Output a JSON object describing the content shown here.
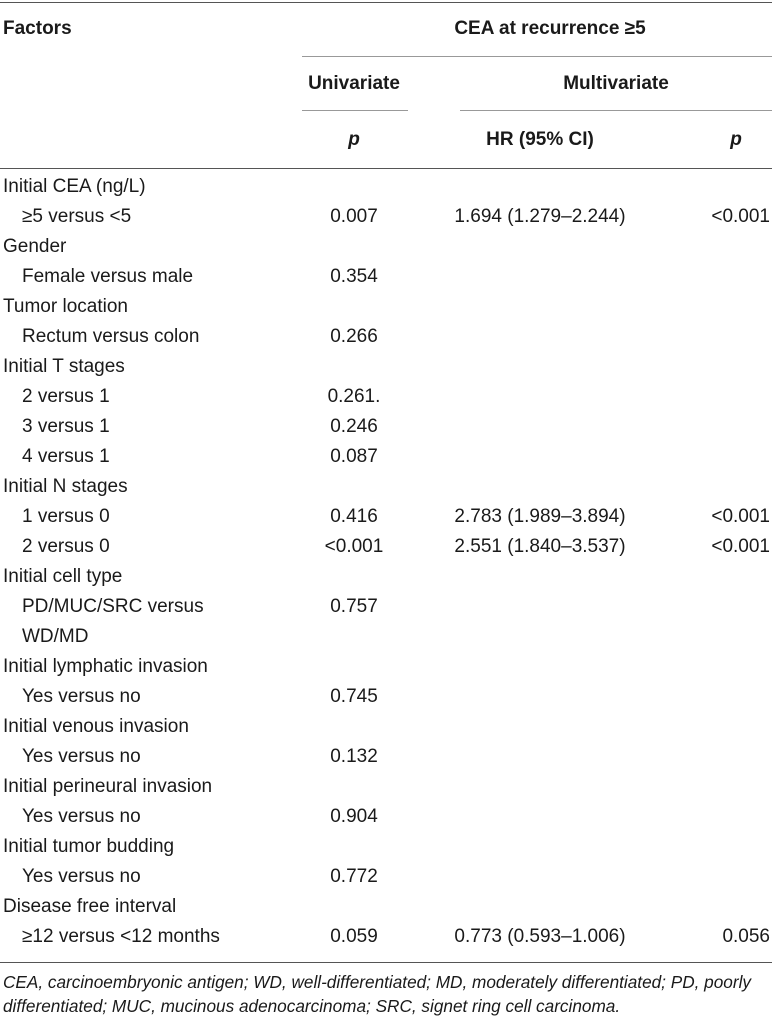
{
  "header": {
    "factors": "Factors",
    "group": "CEA at recurrence ≥5",
    "univariate": "Univariate",
    "multivariate": "Multivariate",
    "p_uni": "p",
    "hr": "HR (95% CI)",
    "p_multi": "p"
  },
  "rows": [
    {
      "label": "Initial CEA (ng/L)",
      "indent": false,
      "uni": "",
      "hr": "",
      "p": ""
    },
    {
      "label": "≥5 versus <5",
      "indent": true,
      "uni": "0.007",
      "hr": "1.694 (1.279–2.244)",
      "p": "<0.001"
    },
    {
      "label": "Gender",
      "indent": false,
      "uni": "",
      "hr": "",
      "p": ""
    },
    {
      "label": "Female versus male",
      "indent": true,
      "uni": "0.354",
      "hr": "",
      "p": ""
    },
    {
      "label": "Tumor location",
      "indent": false,
      "uni": "",
      "hr": "",
      "p": ""
    },
    {
      "label": "Rectum versus colon",
      "indent": true,
      "uni": "0.266",
      "hr": "",
      "p": ""
    },
    {
      "label": "Initial T stages",
      "indent": false,
      "uni": "",
      "hr": "",
      "p": ""
    },
    {
      "label": "2 versus 1",
      "indent": true,
      "uni": "0.261.",
      "hr": "",
      "p": ""
    },
    {
      "label": "3 versus 1",
      "indent": true,
      "uni": "0.246",
      "hr": "",
      "p": ""
    },
    {
      "label": "4 versus 1",
      "indent": true,
      "uni": "0.087",
      "hr": "",
      "p": ""
    },
    {
      "label": "Initial N stages",
      "indent": false,
      "uni": "",
      "hr": "",
      "p": ""
    },
    {
      "label": "1 versus 0",
      "indent": true,
      "uni": "0.416",
      "hr": "2.783 (1.989–3.894)",
      "p": "<0.001"
    },
    {
      "label": "2 versus 0",
      "indent": true,
      "uni": "<0.001",
      "hr": "2.551 (1.840–3.537)",
      "p": "<0.001"
    },
    {
      "label": "Initial cell type",
      "indent": false,
      "uni": "",
      "hr": "",
      "p": ""
    },
    {
      "label": "PD/MUC/SRC versus",
      "indent": true,
      "uni": "0.757",
      "hr": "",
      "p": ""
    },
    {
      "label": "WD/MD",
      "indent": true,
      "uni": "",
      "hr": "",
      "p": ""
    },
    {
      "label": "Initial lymphatic invasion",
      "indent": false,
      "uni": "",
      "hr": "",
      "p": ""
    },
    {
      "label": "Yes versus no",
      "indent": true,
      "uni": "0.745",
      "hr": "",
      "p": ""
    },
    {
      "label": "Initial venous invasion",
      "indent": false,
      "uni": "",
      "hr": "",
      "p": ""
    },
    {
      "label": "Yes versus no",
      "indent": true,
      "uni": "0.132",
      "hr": "",
      "p": ""
    },
    {
      "label": "Initial perineural invasion",
      "indent": false,
      "uni": "",
      "hr": "",
      "p": ""
    },
    {
      "label": "Yes versus no",
      "indent": true,
      "uni": "0.904",
      "hr": "",
      "p": ""
    },
    {
      "label": "Initial tumor budding",
      "indent": false,
      "uni": "",
      "hr": "",
      "p": ""
    },
    {
      "label": "Yes versus no",
      "indent": true,
      "uni": "0.772",
      "hr": "",
      "p": ""
    },
    {
      "label": "Disease free interval",
      "indent": false,
      "uni": "",
      "hr": "",
      "p": ""
    },
    {
      "label": "≥12 versus <12 months",
      "indent": true,
      "uni": "0.059",
      "hr": "0.773 (0.593–1.006)",
      "p": "0.056"
    }
  ],
  "footnote": "CEA, carcinoembryonic antigen; WD, well-differentiated; MD, moderately differentiated; PD, poorly differentiated; MUC, mucinous adenocarcinoma; SRC, signet ring cell carcinoma."
}
